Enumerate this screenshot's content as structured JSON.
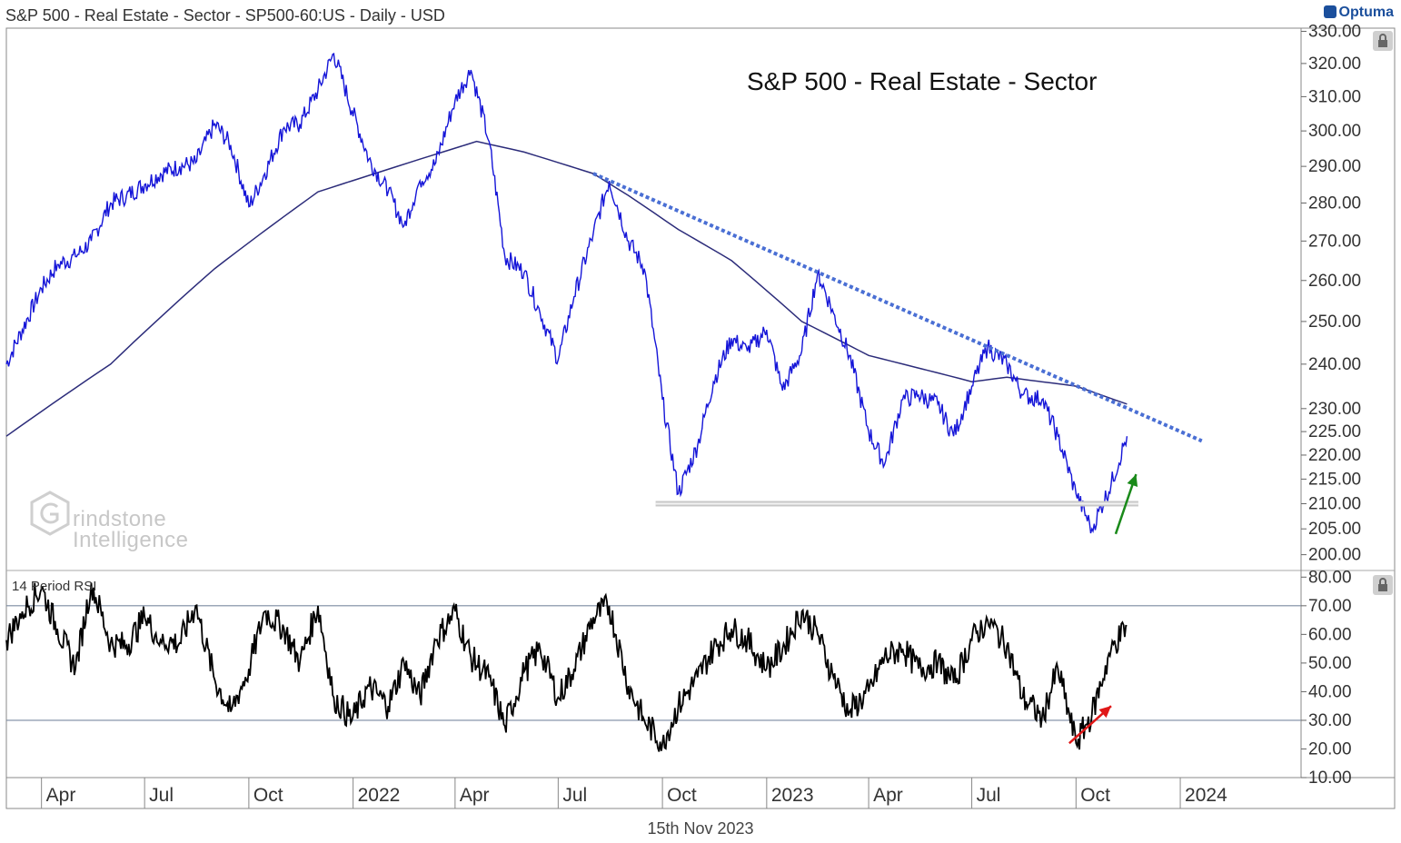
{
  "header": {
    "symbol_line": "S&P 500 - Real Estate - Sector - SP500-60:US - Daily - USD",
    "brand": "Optuma"
  },
  "footer": {
    "date": "15th Nov 2023"
  },
  "watermark": {
    "line1": "rindstone",
    "line2": "Intelligence"
  },
  "icons": [
    "lock-icon",
    "lock-icon",
    "optuma-logo-icon",
    "grindstone-logo-icon"
  ],
  "colors": {
    "price": "#1515d8",
    "ma": "#2c2c7a",
    "trendline": "#4a6fd4",
    "support": "#c8c8c8",
    "rsi": "#000000",
    "green_arrow": "#1a8a1a",
    "red_arrow": "#e01818"
  },
  "chart_data": [
    {
      "type": "line",
      "title": "S&P 500 - Real Estate - Sector",
      "y_axis_labels": [
        "330.00",
        "320.00",
        "310.00",
        "300.00",
        "290.00",
        "280.00",
        "270.00",
        "260.00",
        "250.00",
        "240.00",
        "230.00",
        "225.00",
        "220.00",
        "215.00",
        "210.00",
        "205.00",
        "200.00"
      ],
      "y_scale": "log",
      "ylim": [
        197,
        331
      ],
      "x_tick_labels": [
        "Apr",
        "Jul",
        "Oct",
        "2022",
        "Apr",
        "Jul",
        "Oct",
        "2023",
        "Apr",
        "Jul",
        "Oct",
        "2024"
      ],
      "x_tick_dates": [
        "2021-04-01",
        "2021-07-01",
        "2021-10-01",
        "2022-01-01",
        "2022-04-01",
        "2022-07-01",
        "2022-10-01",
        "2023-01-01",
        "2023-04-01",
        "2023-07-01",
        "2023-10-01",
        "2024-01-01"
      ],
      "xlim": [
        "2021-03-01",
        "2024-04-15"
      ],
      "series": [
        {
          "x": [
            "2021-03-01",
            "2021-03-15",
            "2021-04-01",
            "2021-04-15",
            "2021-05-01",
            "2021-05-15",
            "2021-06-01",
            "2021-06-15",
            "2021-07-01",
            "2021-07-15",
            "2021-08-01",
            "2021-08-15",
            "2021-09-01",
            "2021-09-15",
            "2021-10-01",
            "2021-10-15",
            "2021-11-01",
            "2021-11-15",
            "2021-12-01",
            "2021-12-15",
            "2021-12-31",
            "2022-01-15",
            "2022-02-01",
            "2022-02-15",
            "2022-03-01",
            "2022-03-15",
            "2022-04-01",
            "2022-04-15",
            "2022-05-01",
            "2022-05-15",
            "2022-06-01",
            "2022-06-15",
            "2022-07-01",
            "2022-07-15",
            "2022-08-01",
            "2022-08-15",
            "2022-09-01",
            "2022-09-15",
            "2022-10-01",
            "2022-10-15",
            "2022-11-01",
            "2022-11-15",
            "2022-12-01",
            "2022-12-15",
            "2023-01-01",
            "2023-01-15",
            "2023-02-01",
            "2023-02-15",
            "2023-03-01",
            "2023-03-15",
            "2023-04-01",
            "2023-04-15",
            "2023-05-01",
            "2023-05-15",
            "2023-06-01",
            "2023-06-15",
            "2023-07-01",
            "2023-07-15",
            "2023-08-01",
            "2023-08-15",
            "2023-09-01",
            "2023-09-15",
            "2023-10-01",
            "2023-10-15",
            "2023-11-01",
            "2023-11-15"
          ],
          "values": [
            240,
            248,
            258,
            264,
            266,
            270,
            280,
            282,
            285,
            288,
            290,
            291,
            302,
            296,
            279,
            288,
            301,
            302,
            312,
            323,
            306,
            292,
            283,
            274,
            286,
            291,
            309,
            318,
            297,
            266,
            262,
            252,
            241,
            256,
            272,
            286,
            270,
            263,
            232,
            212,
            222,
            236,
            246,
            243,
            248,
            234,
            243,
            262,
            252,
            242,
            225,
            218,
            232,
            233,
            231,
            224,
            235,
            244,
            240,
            233,
            232,
            224,
            212,
            205,
            214,
            224
          ]
        },
        {
          "x": [
            "2021-03-01",
            "2021-06-01",
            "2021-09-01",
            "2021-12-01",
            "2022-03-01",
            "2022-04-20",
            "2022-06-01",
            "2022-08-01",
            "2022-09-01",
            "2022-10-15",
            "2022-12-01",
            "2023-02-01",
            "2023-04-01",
            "2023-06-01",
            "2023-07-01",
            "2023-08-01",
            "2023-10-01",
            "2023-11-15"
          ],
          "values": [
            224,
            240,
            263,
            283,
            292,
            297,
            294,
            288,
            282,
            273,
            265,
            250,
            242,
            238,
            236,
            237,
            235,
            231
          ]
        }
      ],
      "annotations": {
        "trendline": {
          "start": [
            "2022-08-01",
            288
          ],
          "end": [
            "2024-01-20",
            223
          ]
        },
        "support": {
          "start": [
            "2022-09-25",
            210
          ],
          "end": [
            "2023-11-25",
            210
          ]
        },
        "green_arrow": {
          "from": [
            "2023-11-05",
            204
          ],
          "to": [
            "2023-11-23",
            216
          ]
        }
      }
    },
    {
      "type": "line",
      "label": "14 Period RSI",
      "y_axis_labels": [
        "80.00",
        "70.00",
        "60.00",
        "50.00",
        "40.00",
        "30.00",
        "20.00",
        "10.00"
      ],
      "ylim": [
        10,
        82
      ],
      "reference_lines": [
        70,
        30
      ],
      "series": [
        {
          "x": [
            "2021-03-01",
            "2021-03-15",
            "2021-04-01",
            "2021-04-15",
            "2021-05-01",
            "2021-05-15",
            "2021-06-01",
            "2021-06-15",
            "2021-07-01",
            "2021-07-15",
            "2021-08-01",
            "2021-08-15",
            "2021-09-01",
            "2021-09-15",
            "2021-10-01",
            "2021-10-15",
            "2021-11-01",
            "2021-11-15",
            "2021-12-01",
            "2021-12-15",
            "2021-12-31",
            "2022-01-15",
            "2022-02-01",
            "2022-02-15",
            "2022-03-01",
            "2022-03-15",
            "2022-04-01",
            "2022-04-15",
            "2022-05-01",
            "2022-05-15",
            "2022-06-01",
            "2022-06-15",
            "2022-07-01",
            "2022-07-15",
            "2022-08-01",
            "2022-08-15",
            "2022-09-01",
            "2022-09-15",
            "2022-10-01",
            "2022-10-15",
            "2022-11-01",
            "2022-11-15",
            "2022-12-01",
            "2022-12-15",
            "2023-01-01",
            "2023-01-15",
            "2023-02-01",
            "2023-02-15",
            "2023-03-01",
            "2023-03-15",
            "2023-04-01",
            "2023-04-15",
            "2023-05-01",
            "2023-05-15",
            "2023-06-01",
            "2023-06-15",
            "2023-07-01",
            "2023-07-15",
            "2023-08-01",
            "2023-08-15",
            "2023-09-01",
            "2023-09-15",
            "2023-10-01",
            "2023-10-15",
            "2023-11-01",
            "2023-11-15"
          ],
          "values": [
            58,
            68,
            76,
            62,
            48,
            78,
            57,
            56,
            66,
            58,
            57,
            70,
            44,
            33,
            48,
            68,
            62,
            50,
            70,
            38,
            30,
            42,
            35,
            50,
            38,
            58,
            68,
            52,
            45,
            28,
            47,
            55,
            38,
            48,
            66,
            70,
            42,
            30,
            22,
            35,
            45,
            55,
            62,
            58,
            48,
            55,
            68,
            60,
            45,
            33,
            40,
            52,
            55,
            48,
            50,
            43,
            58,
            65,
            56,
            38,
            31,
            48,
            22,
            32,
            55,
            63
          ]
        }
      ],
      "annotations": {
        "red_arrow": {
          "from": [
            "2023-09-25",
            22
          ],
          "to": [
            "2023-11-01",
            35
          ]
        }
      }
    }
  ]
}
